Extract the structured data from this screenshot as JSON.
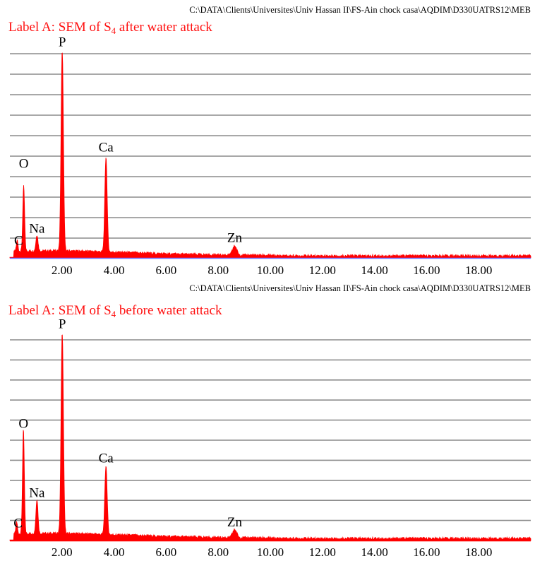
{
  "chart_data": [
    {
      "type": "area",
      "file_path": "C:\\DATA\\Clients\\Universites\\Univ Hassan II\\FS-Ain chock casa\\AQDIM\\D330UATRS12\\MEB",
      "title_main": "Label A: SEM of S",
      "title_sub": "4",
      "title_tail": " after water attack",
      "xlim": [
        0,
        20
      ],
      "x_ticks": [
        "2.00",
        "4.00",
        "6.00",
        "8.00",
        "10.00",
        "12.00",
        "14.00",
        "16.00",
        "18.00"
      ],
      "x_tick_values": [
        2,
        4,
        6,
        8,
        10,
        12,
        14,
        16,
        18
      ],
      "ylim": [
        0,
        100
      ],
      "grid": true,
      "series_color": "#ff0000",
      "peaks": [
        {
          "label": "C",
          "x": 0.28,
          "y": 5.5,
          "width": 0.03
        },
        {
          "label": "O",
          "x": 0.53,
          "y": 32,
          "width": 0.035
        },
        {
          "label": "Na",
          "x": 1.04,
          "y": 8,
          "width": 0.04
        },
        {
          "label": "P",
          "x": 2.01,
          "y": 100,
          "width": 0.045
        },
        {
          "label": "Ca",
          "x": 3.69,
          "y": 47,
          "width": 0.045
        },
        {
          "label": "Zn",
          "x": 8.63,
          "y": 4.5,
          "width": 0.08
        }
      ],
      "peak_label_y": {
        "C": 5,
        "O": 43,
        "Na": 11,
        "P": 103,
        "Ca": 51,
        "Zn": 6.5
      }
    },
    {
      "type": "area",
      "file_path": "C:\\DATA\\Clients\\Universites\\Univ Hassan II\\FS-Ain chock casa\\AQDIM\\D330UATRS12\\MEB",
      "title_main": "Label A: SEM of S",
      "title_sub": "4",
      "title_tail": " before water attack",
      "xlim": [
        0,
        20
      ],
      "x_ticks": [
        "2.00",
        "4.00",
        "6.00",
        "8.00",
        "10.00",
        "12.00",
        "14.00",
        "16.00",
        "18.00"
      ],
      "x_tick_values": [
        2,
        4,
        6,
        8,
        10,
        12,
        14,
        16,
        18
      ],
      "ylim": [
        0,
        100
      ],
      "grid": true,
      "series_color": "#ff0000",
      "peaks": [
        {
          "label": "C",
          "x": 0.26,
          "y": 6,
          "width": 0.03
        },
        {
          "label": "O",
          "x": 0.52,
          "y": 51,
          "width": 0.035
        },
        {
          "label": "Na",
          "x": 1.04,
          "y": 17,
          "width": 0.04
        },
        {
          "label": "P",
          "x": 2.01,
          "y": 100,
          "width": 0.045
        },
        {
          "label": "Ca",
          "x": 3.69,
          "y": 34,
          "width": 0.045
        },
        {
          "label": "Zn",
          "x": 8.63,
          "y": 4,
          "width": 0.08
        }
      ],
      "peak_label_y": {
        "C": 5,
        "O": 54,
        "Na": 20,
        "P": 103,
        "Ca": 37,
        "Zn": 5.5
      }
    }
  ]
}
